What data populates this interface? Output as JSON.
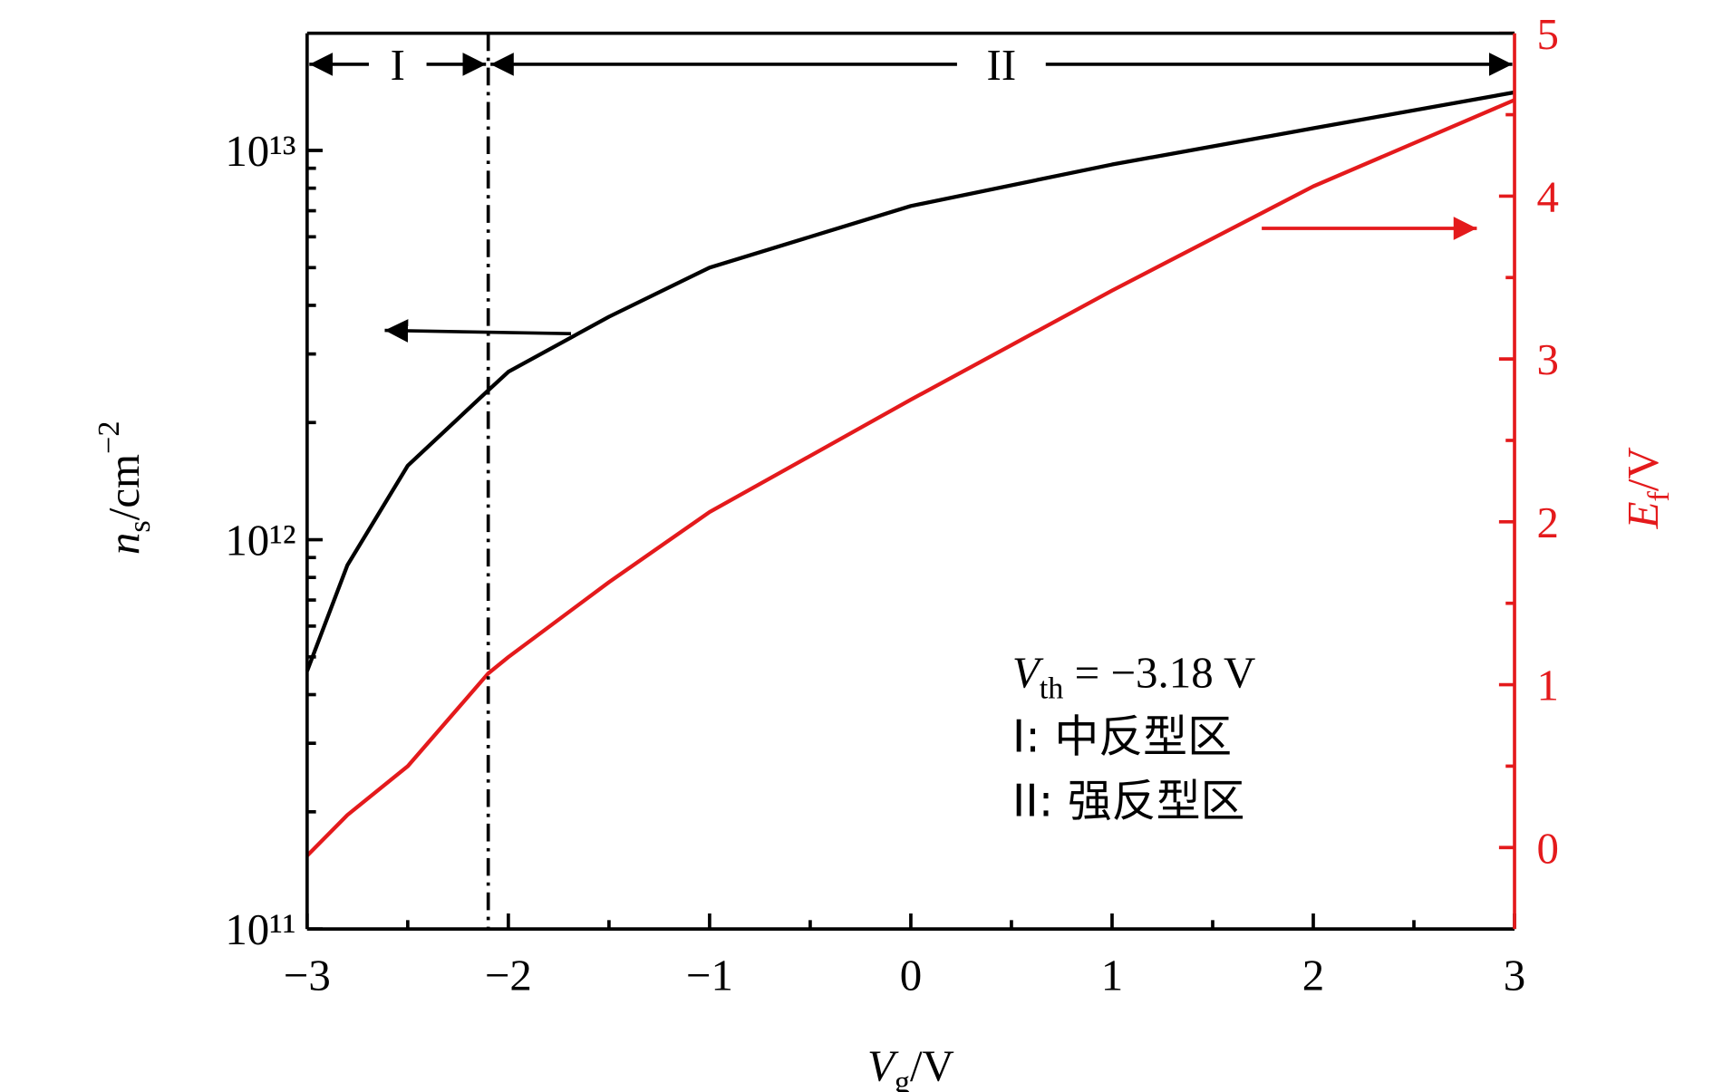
{
  "chart_data": {
    "type": "line",
    "xlabel": [
      "V",
      "g",
      "/V"
    ],
    "ylabel": [
      "n",
      "s",
      "/cm",
      "−2"
    ],
    "y2label": [
      "E",
      "f",
      "/V"
    ],
    "x": [
      -3,
      -2.8,
      -2.5,
      -2.1,
      -2,
      -1.5,
      -1,
      0,
      1,
      2,
      3
    ],
    "series": [
      {
        "name": "ns",
        "color": "#000000",
        "axis": "y",
        "values": [
          460000000000.0,
          860000000000.0,
          1550000000000.0,
          2420000000000.0,
          2700000000000.0,
          3740000000000.0,
          5000000000000.0,
          7200000000000.0,
          9200000000000.0,
          11400000000000.0,
          14100000000000.0
        ]
      },
      {
        "name": "Ef",
        "color": "#e41a1c",
        "axis": "y2",
        "values": [
          -0.05,
          0.2,
          0.5,
          1.07,
          1.17,
          1.63,
          2.06,
          2.75,
          3.42,
          4.06,
          4.59
        ]
      }
    ],
    "xlim": [
      -3,
      3
    ],
    "xticks": [
      {
        "value": -3,
        "label": "−3"
      },
      {
        "value": -2,
        "label": "−2"
      },
      {
        "value": -1,
        "label": "−1"
      },
      0,
      1,
      2,
      3
    ],
    "xminorticks": [
      -2.5,
      -1.5,
      -0.5,
      0.5,
      1.5,
      2.5
    ],
    "ylim": [
      100000000000.0,
      20000000000000.0
    ],
    "ylog": true,
    "yticks": [
      {
        "value": 100000000000.0,
        "label": "10¹¹"
      },
      {
        "value": 1000000000000.0,
        "label": "10¹²"
      },
      {
        "value": 10000000000000.0,
        "label": "10¹³"
      }
    ],
    "yminorticks": [
      200000000000.0,
      300000000000.0,
      400000000000.0,
      500000000000.0,
      600000000000.0,
      700000000000.0,
      800000000000.0,
      900000000000.0,
      2000000000000.0,
      3000000000000.0,
      4000000000000.0,
      5000000000000.0,
      6000000000000.0,
      7000000000000.0,
      8000000000000.0,
      9000000000000.0
    ],
    "y2lim": [
      -0.5,
      5
    ],
    "y2ticks": [
      0,
      1,
      2,
      3,
      4,
      5
    ],
    "y2minorticks": [
      0.5,
      1.5,
      2.5,
      3.5,
      4.5
    ],
    "y2color": "#e41a1c",
    "vline": -2.1,
    "regions": [
      "I",
      "II"
    ],
    "annotation": {
      "vth": [
        "V",
        "th",
        " = −3.18 V"
      ],
      "lines": [
        "I: 中反型区",
        "II: 强反型区"
      ]
    }
  }
}
